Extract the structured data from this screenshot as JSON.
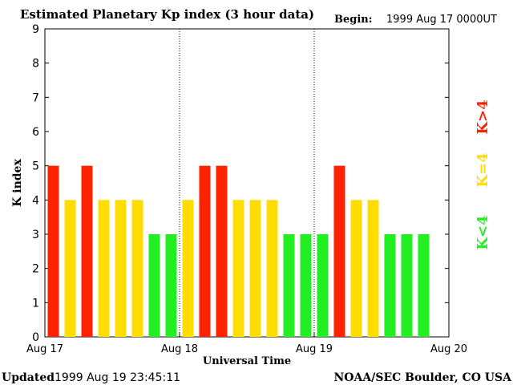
{
  "chart_data": {
    "type": "bar",
    "title": "Estimated Planetary Kp index (3 hour data)",
    "begin_label": "Begin:",
    "begin_value": "1999 Aug 17 0000UT",
    "xlabel": "Universal Time",
    "ylabel": "K index",
    "ylim": [
      0,
      9
    ],
    "yticks": [
      "0",
      "1",
      "2",
      "3",
      "4",
      "5",
      "6",
      "7",
      "8",
      "9"
    ],
    "xtick_labels": [
      "Aug 17",
      "Aug 18",
      "Aug 19",
      "Aug 20"
    ],
    "day_dividers_at_bar_index": [
      8,
      16
    ],
    "values": [
      5,
      4,
      5,
      4,
      4,
      4,
      3,
      3,
      4,
      5,
      5,
      4,
      4,
      4,
      3,
      3,
      3,
      5,
      4,
      4,
      3,
      3,
      3
    ],
    "legend": [
      {
        "label": "K<4",
        "color": "#22ee22"
      },
      {
        "label": "K=4",
        "color": "#ffdd00"
      },
      {
        "label": "K>4",
        "color": "#ff2200"
      }
    ],
    "footer_left_label": "Updated",
    "footer_left_value": "1999 Aug 19 23:45:11",
    "footer_right": "NOAA/SEC Boulder, CO USA"
  },
  "colors": {
    "low": "#22ee22",
    "mid": "#ffdd00",
    "high": "#ff2200",
    "axis": "#000000"
  }
}
